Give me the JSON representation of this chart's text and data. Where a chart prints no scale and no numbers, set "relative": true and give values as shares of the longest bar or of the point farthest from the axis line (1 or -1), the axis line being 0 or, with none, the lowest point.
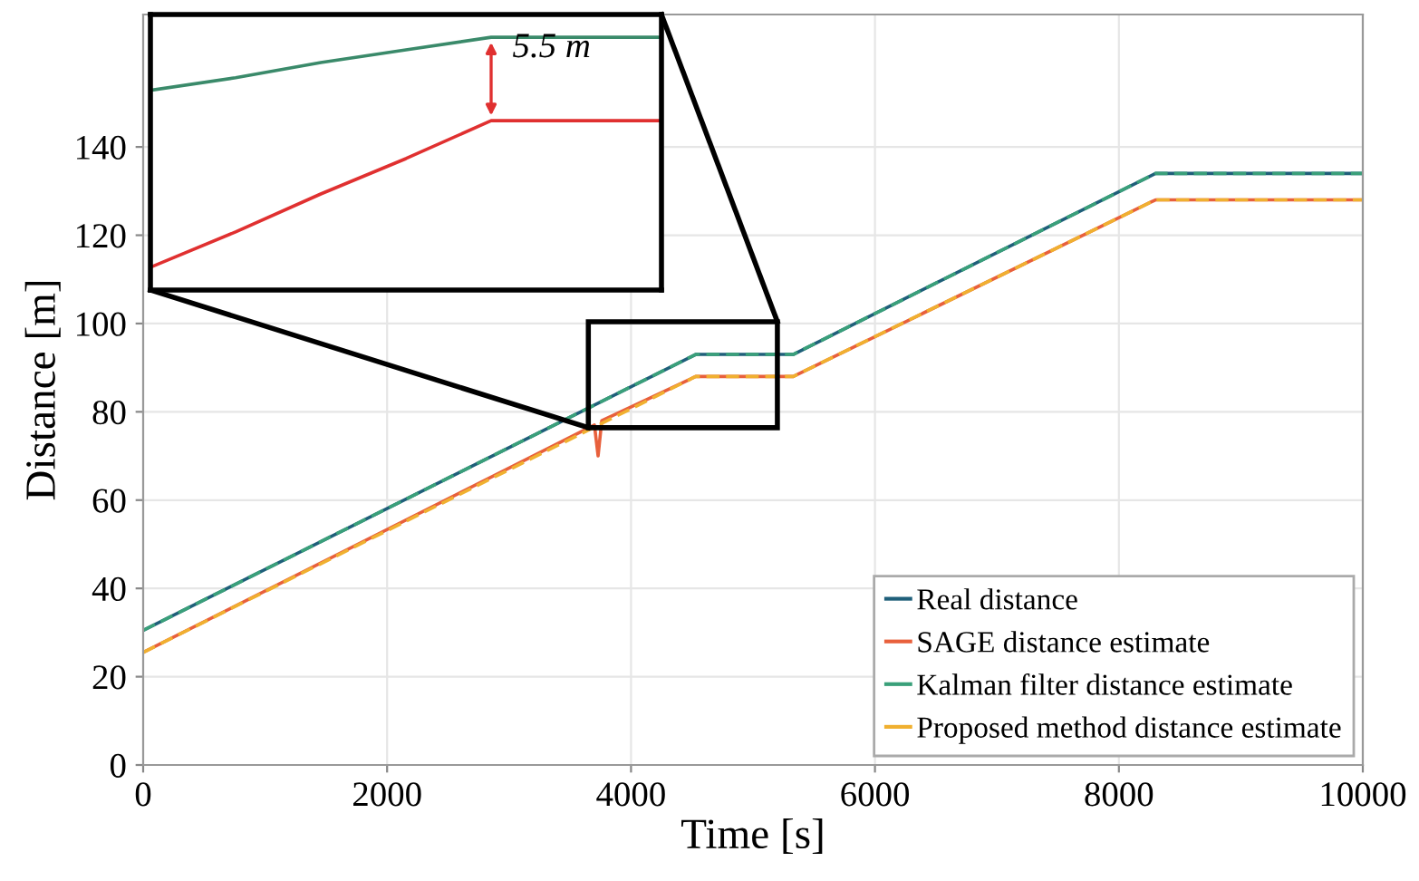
{
  "chart_data": [
    {
      "type": "line",
      "xlabel": "Time [s]",
      "ylabel": "Distance [m]",
      "xlim": [
        0,
        10000
      ],
      "xticks": [
        0,
        2000,
        4000,
        6000,
        8000,
        10000
      ],
      "ylim": [
        0,
        170
      ],
      "yticks": [
        0,
        20,
        40,
        60,
        80,
        100,
        120,
        140
      ],
      "grid": true,
      "legend": "bottom right",
      "series": [
        {
          "name": "Real distance",
          "color": "#1f5f7a",
          "line_style": "solid",
          "x": [
            0,
            4530,
            5330,
            8300,
            10000
          ],
          "values": [
            30.5,
            93,
            93,
            134,
            134
          ]
        },
        {
          "name": "SAGE distance estimate",
          "color": "#e8603c",
          "line_style": "solid",
          "x": [
            0,
            3700,
            3730,
            3760,
            4530,
            5330,
            8300,
            10000
          ],
          "values": [
            25.5,
            77,
            70,
            78,
            88,
            88,
            128,
            128
          ]
        },
        {
          "name": "Kalman filter distance estimate",
          "color": "#3aa07a",
          "line_style": "dashed",
          "x": [
            0,
            4530,
            5330,
            8300,
            10000
          ],
          "values": [
            30.5,
            93,
            93,
            134,
            134
          ]
        },
        {
          "name": "Proposed method distance estimate",
          "color": "#f0b030",
          "line_style": "dashed",
          "x": [
            0,
            4530,
            5330,
            8300,
            10000
          ],
          "values": [
            25.5,
            88,
            88,
            128,
            128
          ]
        }
      ]
    },
    {
      "type": "line",
      "relative": true,
      "categories": [
        null,
        null,
        null,
        null,
        null,
        null,
        null
      ],
      "annotations": [
        "5.5 m"
      ],
      "series": [
        {
          "color": "#3a8a6a",
          "values": [
            0.79,
            0.84,
            0.9,
            0.95,
            1.0,
            1.0,
            1.0
          ]
        },
        {
          "color": "#e03030",
          "values": [
            0.09,
            0.23,
            0.38,
            0.52,
            0.67,
            0.67,
            0.67
          ]
        }
      ]
    }
  ]
}
